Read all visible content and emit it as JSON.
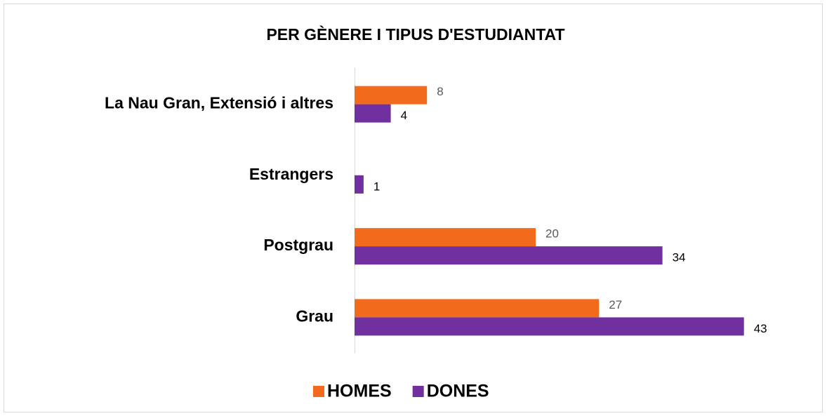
{
  "chart_data": {
    "type": "bar",
    "orientation": "horizontal",
    "title": "PER GÈNERE I TIPUS D'ESTUDIANTAT",
    "categories": [
      "La Nau Gran, Extensió i altres",
      "Estrangers",
      "Postgrau",
      "Grau"
    ],
    "series": [
      {
        "name": "HOMES",
        "color": "#f26b1d",
        "label_color": "#595959",
        "values": [
          8,
          null,
          20,
          27
        ]
      },
      {
        "name": "DONES",
        "color": "#7030a0",
        "label_color": "#000000",
        "values": [
          4,
          1,
          34,
          43
        ]
      }
    ],
    "xlim": [
      0,
      50
    ],
    "legend": "bottom"
  }
}
